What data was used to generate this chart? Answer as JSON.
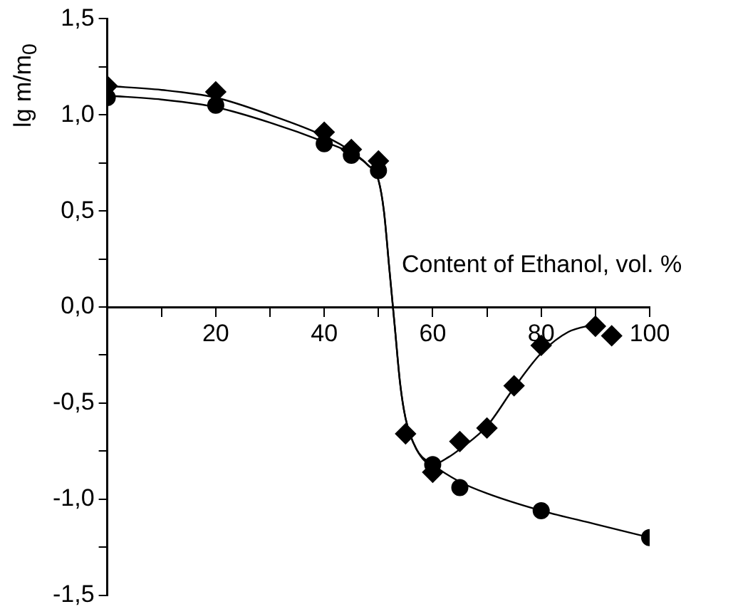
{
  "chart_data": {
    "type": "scatter",
    "xlabel": "Content of Ethanol, vol. %",
    "ylabel": "lg m/m$_{0}$",
    "xlim": [
      0,
      100
    ],
    "ylim": [
      -1.5,
      1.5
    ],
    "xticks": [
      {
        "value": 0,
        "label": null
      },
      {
        "value": 10,
        "label": null
      },
      20,
      {
        "value": 30,
        "label": null
      },
      40,
      {
        "value": 50,
        "label": null
      },
      60,
      {
        "value": 70,
        "label": null
      },
      80,
      {
        "value": 90,
        "label": null
      },
      100
    ],
    "yticks": [
      {
        "value": -1.5,
        "label": "-1,5"
      },
      {
        "value": -1.25,
        "label": null
      },
      {
        "value": -1,
        "label": "-1,0"
      },
      {
        "value": -0.75,
        "label": null
      },
      {
        "value": -0.5,
        "label": "-0,5"
      },
      {
        "value": -0.25,
        "label": null
      },
      {
        "value": 0,
        "label": "0,0"
      },
      {
        "value": 0.25,
        "label": null
      },
      {
        "value": 0.5,
        "label": "0,5"
      },
      {
        "value": 0.75,
        "label": null
      },
      {
        "value": 1,
        "label": "1,0"
      },
      {
        "value": 1.25,
        "label": null
      },
      {
        "value": 1.5,
        "label": "1,5"
      }
    ],
    "grid": false,
    "legend": false,
    "series": [
      {
        "type": "line",
        "color": "#000000",
        "marker": "none",
        "x": [
          0,
          10,
          20,
          30,
          40,
          45,
          48,
          50,
          51,
          52,
          53,
          54,
          55,
          57,
          60,
          65,
          70,
          80,
          90,
          100
        ],
        "values": [
          1.1,
          1.08,
          1.04,
          0.96,
          0.86,
          0.8,
          0.74,
          0.66,
          0.5,
          0.2,
          -0.1,
          -0.4,
          -0.58,
          -0.74,
          -0.82,
          -0.91,
          -0.97,
          -1.06,
          -1.13,
          -1.2
        ]
      },
      {
        "type": "line",
        "color": "#000000",
        "marker": "none",
        "x": [
          0,
          10,
          20,
          30,
          40,
          45,
          48,
          50,
          51,
          52,
          53,
          54,
          55,
          57,
          60,
          63,
          65,
          70,
          75,
          80,
          85,
          90
        ],
        "values": [
          1.15,
          1.13,
          1.09,
          1.0,
          0.89,
          0.81,
          0.74,
          0.66,
          0.5,
          0.2,
          -0.1,
          -0.4,
          -0.58,
          -0.74,
          -0.82,
          -0.78,
          -0.74,
          -0.62,
          -0.42,
          -0.24,
          -0.13,
          -0.09
        ]
      },
      {
        "type": "scatter",
        "color": "#000000",
        "marker": "circle",
        "x": [
          0,
          20,
          40,
          45,
          50,
          60,
          65,
          80,
          100
        ],
        "values": [
          1.09,
          1.05,
          0.85,
          0.79,
          0.71,
          -0.82,
          -0.94,
          -1.06,
          -1.2
        ]
      },
      {
        "type": "scatter",
        "color": "#000000",
        "marker": "diamond",
        "x": [
          0,
          20,
          40,
          45,
          50,
          55,
          60,
          65,
          70,
          75,
          80,
          90,
          93
        ],
        "values": [
          1.15,
          1.12,
          0.91,
          0.82,
          0.76,
          -0.66,
          -0.86,
          -0.7,
          -0.63,
          -0.41,
          -0.2,
          -0.1,
          -0.15
        ]
      }
    ]
  }
}
